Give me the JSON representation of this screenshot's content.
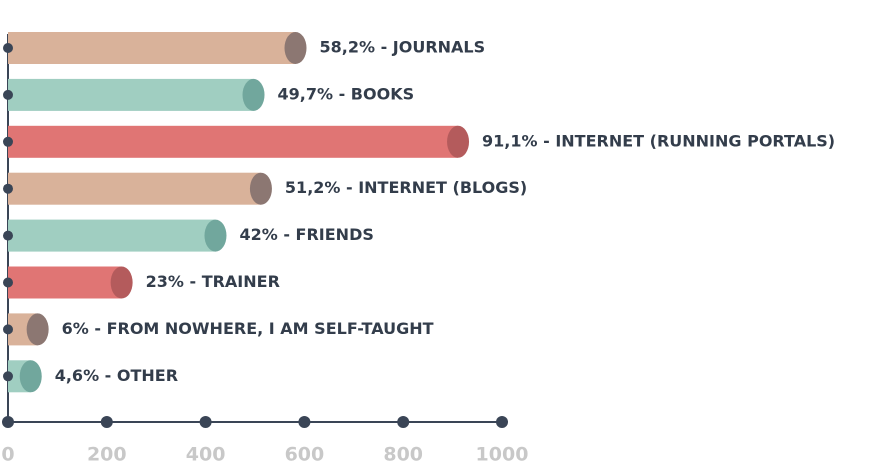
{
  "chart_data": {
    "type": "bar",
    "orientation": "horizontal",
    "values": [
      582,
      497,
      911,
      512,
      420,
      230,
      60,
      46
    ],
    "value_labels": [
      "58,2% - JOURNALS",
      "49,7% - BOOKS",
      "91,1% - INTERNET (RUNNING PORTALS)",
      "51,2% - INTERNET (BLOGS)",
      "42% - FRIENDS",
      "23% - TRAINER",
      "6% - FROM NOWHERE, I AM SELF-TAUGHT",
      "4,6% - OTHER"
    ],
    "colors": [
      "#d9b29a",
      "#a0cec1",
      "#e07574",
      "#d9b29a",
      "#a0cec1",
      "#e07574",
      "#d9b29a",
      "#a0cec1"
    ],
    "cap_colors": [
      "#8c7772",
      "#71a79d",
      "#b45b5c",
      "#8c7772",
      "#71a79d",
      "#b45b5c",
      "#8c7772",
      "#71a79d"
    ],
    "xlim": [
      0,
      1000
    ],
    "xticks": [
      0,
      200,
      400,
      600,
      800,
      1000
    ]
  }
}
